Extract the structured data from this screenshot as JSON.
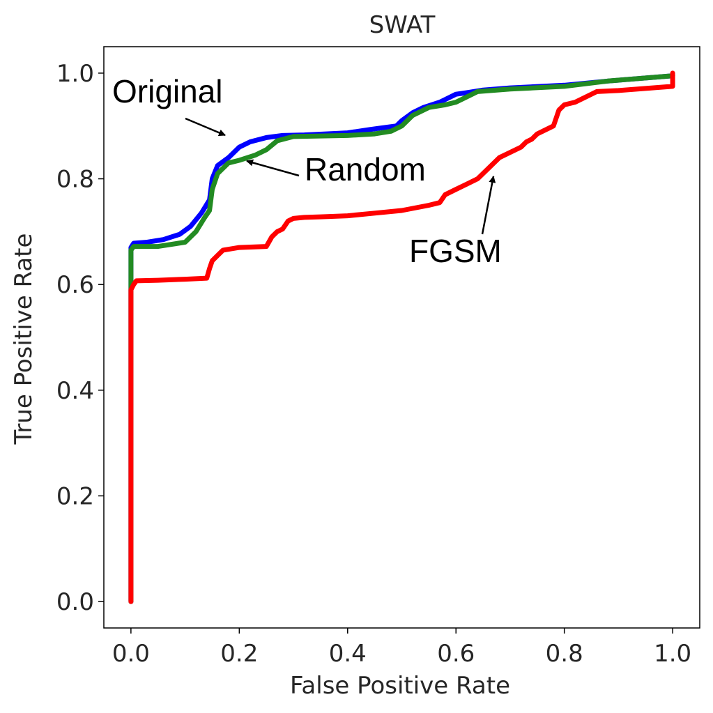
{
  "chart_data": {
    "type": "line",
    "title": "SWAT",
    "xlabel": "False Positive Rate",
    "ylabel": "True Positive Rate",
    "xlim": [
      -0.05,
      1.05
    ],
    "ylim": [
      -0.05,
      1.05
    ],
    "xticks": [
      0.0,
      0.2,
      0.4,
      0.6,
      0.8,
      1.0
    ],
    "yticks": [
      0.0,
      0.2,
      0.4,
      0.6,
      0.8,
      1.0
    ],
    "xtick_labels": [
      "0.0",
      "0.2",
      "0.4",
      "0.6",
      "0.8",
      "1.0"
    ],
    "ytick_labels": [
      "0.0",
      "0.2",
      "0.4",
      "0.6",
      "0.8",
      "1.0"
    ],
    "grid": false,
    "series": [
      {
        "name": "Original",
        "color": "#0000ff",
        "x": [
          0.0,
          0.0,
          0.0,
          0.005,
          0.03,
          0.06,
          0.09,
          0.11,
          0.13,
          0.145,
          0.15,
          0.16,
          0.18,
          0.2,
          0.22,
          0.25,
          0.28,
          0.32,
          0.4,
          0.44,
          0.46,
          0.49,
          0.5,
          0.52,
          0.54,
          0.57,
          0.6,
          0.62,
          0.65,
          0.7,
          0.8,
          0.88,
          1.0
        ],
        "y": [
          0.0,
          0.6,
          0.67,
          0.678,
          0.68,
          0.685,
          0.695,
          0.71,
          0.735,
          0.76,
          0.8,
          0.825,
          0.84,
          0.86,
          0.87,
          0.878,
          0.882,
          0.883,
          0.887,
          0.893,
          0.896,
          0.9,
          0.91,
          0.925,
          0.935,
          0.945,
          0.96,
          0.963,
          0.968,
          0.972,
          0.977,
          0.985,
          0.995
        ]
      },
      {
        "name": "Random",
        "color": "#228b22",
        "x": [
          0.0,
          0.0,
          0.0,
          0.005,
          0.05,
          0.1,
          0.12,
          0.135,
          0.145,
          0.15,
          0.16,
          0.18,
          0.2,
          0.23,
          0.25,
          0.27,
          0.3,
          0.4,
          0.45,
          0.48,
          0.5,
          0.52,
          0.55,
          0.58,
          0.6,
          0.62,
          0.64,
          0.7,
          0.8,
          0.88,
          1.0
        ],
        "y": [
          0.0,
          0.58,
          0.665,
          0.672,
          0.672,
          0.68,
          0.7,
          0.725,
          0.74,
          0.78,
          0.81,
          0.83,
          0.835,
          0.845,
          0.855,
          0.872,
          0.88,
          0.882,
          0.885,
          0.89,
          0.9,
          0.92,
          0.935,
          0.94,
          0.945,
          0.955,
          0.965,
          0.97,
          0.975,
          0.985,
          0.995
        ]
      },
      {
        "name": "FGSM",
        "color": "#ff0000",
        "x": [
          0.0,
          0.0,
          0.0,
          0.005,
          0.01,
          0.05,
          0.1,
          0.14,
          0.145,
          0.15,
          0.16,
          0.17,
          0.2,
          0.25,
          0.26,
          0.27,
          0.28,
          0.29,
          0.3,
          0.32,
          0.35,
          0.4,
          0.45,
          0.5,
          0.55,
          0.57,
          0.58,
          0.6,
          0.62,
          0.64,
          0.66,
          0.68,
          0.7,
          0.72,
          0.73,
          0.74,
          0.75,
          0.78,
          0.79,
          0.8,
          0.82,
          0.84,
          0.86,
          0.9,
          1.0,
          1.0
        ],
        "y": [
          0.0,
          0.5,
          0.59,
          0.6,
          0.607,
          0.608,
          0.61,
          0.612,
          0.63,
          0.645,
          0.655,
          0.665,
          0.67,
          0.672,
          0.69,
          0.7,
          0.705,
          0.72,
          0.725,
          0.727,
          0.728,
          0.73,
          0.735,
          0.74,
          0.75,
          0.755,
          0.77,
          0.78,
          0.79,
          0.8,
          0.82,
          0.84,
          0.85,
          0.86,
          0.87,
          0.875,
          0.885,
          0.9,
          0.93,
          0.94,
          0.945,
          0.955,
          0.965,
          0.967,
          0.975,
          1.0
        ]
      }
    ],
    "annotations": [
      {
        "text": "Original",
        "arrow_to": [
          0.175,
          0.885
        ]
      },
      {
        "text": "Random",
        "arrow_to": [
          0.215,
          0.835
        ]
      },
      {
        "text": "FGSM",
        "arrow_to": [
          0.665,
          0.8
        ]
      }
    ]
  }
}
